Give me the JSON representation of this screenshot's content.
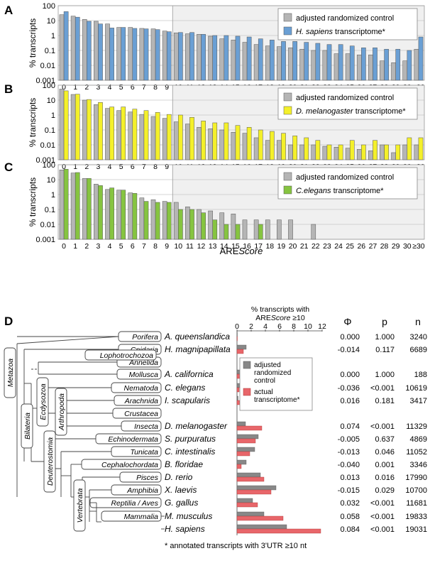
{
  "colors": {
    "control": "#b5b5b5",
    "human": "#6a9fd4",
    "fly": "#f4f02a",
    "worm": "#86c440",
    "actual": "#e8666a",
    "red_text": "#d0262d",
    "shade": "#f0f0f0"
  },
  "common": {
    "ylabel": "% transcripts",
    "xlabel_pre": "ARE",
    "xlabel_it": "Score",
    "ticks_y": [
      "100",
      "10",
      "1",
      "0.1",
      "0.01",
      "0.001"
    ],
    "ticks_x": [
      "0",
      "1",
      "2",
      "3",
      "4",
      "5",
      "6",
      "7",
      "8",
      "9",
      "10",
      "11",
      "12",
      "13",
      "14",
      "15",
      "16",
      "17",
      "18",
      "19",
      "20",
      "21",
      "22",
      "23",
      "24",
      "25",
      "26",
      "27",
      "28",
      "29",
      "30",
      "≥30"
    ],
    "legend_control": "adjusted randomized control"
  },
  "chart_data": [
    {
      "type": "bar",
      "panel": "A",
      "legend_species": "H. sapiens",
      "legend_suffix": " transcriptome*",
      "categories": [
        "0",
        "1",
        "2",
        "3",
        "4",
        "5",
        "6",
        "7",
        "8",
        "9",
        "10",
        "11",
        "12",
        "13",
        "14",
        "15",
        "16",
        "17",
        "18",
        "19",
        "20",
        "21",
        "22",
        "23",
        "24",
        "25",
        "26",
        "27",
        "28",
        "29",
        "30",
        "≥30"
      ],
      "series": [
        {
          "name": "adjusted randomized control",
          "values": [
            25,
            20,
            12,
            9,
            6,
            3.5,
            3.5,
            3,
            2.8,
            2,
            1.5,
            1.3,
            1.2,
            0.9,
            0.6,
            0.5,
            0.35,
            0.25,
            0.2,
            0.18,
            0.15,
            0.12,
            0.1,
            0.1,
            0.06,
            0.06,
            0.05,
            0.05,
            0.02,
            0.015,
            0.02,
            0.12
          ]
        },
        {
          "name": "H. sapiens transcriptome*",
          "values": [
            40,
            17,
            9,
            6,
            3.2,
            3.5,
            3,
            2.8,
            2.5,
            1.8,
            1.6,
            1.6,
            1.2,
            1,
            1,
            0.9,
            0.8,
            0.6,
            0.5,
            0.4,
            0.4,
            0.35,
            0.3,
            0.25,
            0.25,
            0.2,
            0.15,
            0.15,
            0.12,
            0.12,
            0.1,
            0.8
          ]
        }
      ],
      "ylim": [
        0.001,
        100
      ]
    },
    {
      "type": "bar",
      "panel": "B",
      "legend_species": "D. melanogaster",
      "legend_suffix": " transcriptome*",
      "categories": [
        "0",
        "1",
        "2",
        "3",
        "4",
        "5",
        "6",
        "7",
        "8",
        "9",
        "10",
        "11",
        "12",
        "13",
        "14",
        "15",
        "16",
        "17",
        "18",
        "19",
        "20",
        "21",
        "22",
        "23",
        "24",
        "25",
        "26",
        "27",
        "28",
        "29",
        "30",
        "≥30"
      ],
      "series": [
        {
          "name": "adjusted randomized control",
          "values": [
            55,
            24,
            10,
            5,
            2.8,
            2,
            1.6,
            1.1,
            0.8,
            0.6,
            0.35,
            0.25,
            0.15,
            0.12,
            0.1,
            0.07,
            0.06,
            0.03,
            0.02,
            0.02,
            0.01,
            0.01,
            0.01,
            0.008,
            0.007,
            0.006,
            0.005,
            0.004,
            0.01,
            0.003,
            0.01,
            0.01
          ]
        },
        {
          "name": "D. melanogaster transcriptome*",
          "values": [
            42,
            25,
            11,
            7,
            3.5,
            3.5,
            2.5,
            2,
            1.5,
            1.1,
            1,
            0.7,
            0.4,
            0.3,
            0.3,
            0.2,
            0.15,
            0.1,
            0.08,
            0.06,
            0.04,
            0.03,
            0.02,
            0.01,
            0.01,
            0.02,
            0.01,
            0.02,
            0.01,
            0.01,
            0.03,
            0.03
          ]
        }
      ],
      "ylim": [
        0.001,
        100
      ]
    },
    {
      "type": "bar",
      "panel": "C",
      "legend_species": "C.elegans",
      "legend_suffix": " transcriptome*",
      "categories": [
        "0",
        "1",
        "2",
        "3",
        "4",
        "5",
        "6",
        "7",
        "8",
        "9",
        "10",
        "11",
        "12",
        "13",
        "14",
        "15",
        "16",
        "17",
        "18",
        "19",
        "20",
        "21",
        "22",
        "23",
        "24",
        "25",
        "26",
        "27",
        "28",
        "29",
        "30",
        "≥30"
      ],
      "series": [
        {
          "name": "adjusted randomized control",
          "values": [
            45,
            28,
            12,
            5,
            2.2,
            2,
            1.3,
            0.6,
            0.45,
            0.35,
            0.3,
            0.15,
            0.1,
            0.08,
            0.06,
            0.05,
            0.02,
            0.02,
            0.02,
            0.02,
            0.02,
            0,
            0.01,
            0,
            0,
            0,
            0,
            0,
            0,
            0,
            0,
            0
          ]
        },
        {
          "name": "C.elegans transcriptome*",
          "values": [
            50,
            30,
            12,
            4,
            2.8,
            2,
            1.2,
            0.35,
            0.3,
            0.3,
            0.1,
            0.1,
            0.06,
            0.02,
            0.01,
            0.01,
            0,
            0.01,
            0,
            0,
            0,
            0,
            0,
            0,
            0,
            0,
            0,
            0,
            0,
            0,
            0,
            0
          ]
        }
      ],
      "ylim": [
        0.001,
        100
      ]
    },
    {
      "type": "bar",
      "panel": "D",
      "title_line1": "% transcripts with",
      "title_pre": "ARE",
      "title_it": "Score",
      "title_post": " ≥10",
      "ticks": [
        "0",
        "2",
        "4",
        "6",
        "8",
        "10",
        "12"
      ],
      "legend_control": [
        "adjusted",
        "randomized",
        "control"
      ],
      "legend_actual": [
        "actual",
        "transcriptome*"
      ],
      "footnote": "* annotated transcripts with 3'UTR ≥10 nt",
      "col_phi": "Φ",
      "col_p": "p",
      "col_n": "n",
      "rows": [
        {
          "species": "A. queenslandica",
          "red": false,
          "control": 0.05,
          "actual": 0.05,
          "phi": "0.000",
          "p": "1.000",
          "n": "3240"
        },
        {
          "species": "H. magnipapillata",
          "red": false,
          "control": 1.3,
          "actual": 0.9,
          "phi": "-0.014",
          "p": "0.117",
          "n": "6689"
        },
        {
          "species": "",
          "red": false,
          "control": 0,
          "actual": 0,
          "phi": "",
          "p": "",
          "n": ""
        },
        {
          "species": "A. californica",
          "red": false,
          "control": 1.5,
          "actual": 0.6,
          "phi": "0.000",
          "p": "1.000",
          "n": "188"
        },
        {
          "species": "C. elegans",
          "red": false,
          "control": 0.9,
          "actual": 0.3,
          "phi": "-0.036",
          "p": "<0.001",
          "n": "10619"
        },
        {
          "species": "I. scapularis",
          "red": false,
          "control": 0.15,
          "actual": 0.4,
          "phi": "0.016",
          "p": "0.181",
          "n": "3417"
        },
        {
          "species": "",
          "red": false,
          "control": 0,
          "actual": 0,
          "phi": "",
          "p": "",
          "n": ""
        },
        {
          "species": "D. melanogaster",
          "red": true,
          "control": 1.2,
          "actual": 3.5,
          "phi": "0.074",
          "p": "<0.001",
          "n": "11329"
        },
        {
          "species": "S. purpuratus",
          "red": false,
          "control": 3.0,
          "actual": 2.6,
          "phi": "-0.005",
          "p": "0.637",
          "n": "4869"
        },
        {
          "species": "C. intestinalis",
          "red": false,
          "control": 2.5,
          "actual": 1.8,
          "phi": "-0.013",
          "p": "0.046",
          "n": "11052"
        },
        {
          "species": "B. floridae",
          "red": false,
          "control": 1.3,
          "actual": 0.6,
          "phi": "-0.040",
          "p": "0.001",
          "n": "3346"
        },
        {
          "species": "D. rerio",
          "red": true,
          "control": 3.3,
          "actual": 3.8,
          "phi": "0.013",
          "p": "0.016",
          "n": "17990"
        },
        {
          "species": "X. laevis",
          "red": false,
          "control": 5.5,
          "actual": 4.8,
          "phi": "-0.015",
          "p": "0.029",
          "n": "10700"
        },
        {
          "species": "G. gallus",
          "red": true,
          "control": 2.2,
          "actual": 2.9,
          "phi": "0.032",
          "p": "<0.001",
          "n": "11681"
        },
        {
          "species": "M. musculus",
          "red": true,
          "control": 3.8,
          "actual": 6.5,
          "phi": "0.058",
          "p": "<0.001",
          "n": "19833"
        },
        {
          "species": "H. sapiens",
          "red": true,
          "control": 7.0,
          "actual": 11.8,
          "phi": "0.084",
          "p": "<0.001",
          "n": "19031"
        }
      ],
      "xlim": [
        0,
        12
      ]
    }
  ],
  "tree_labels": {
    "metazoa": "Metazoa",
    "bilateria": "Bilateria",
    "lophotrochozoa": "Lophotrochozoa",
    "ecdysozoa": "Ecdysozoa",
    "arthropoda": "Arthropoda",
    "deuterostomia": "Deuterostomia",
    "vertebrata": "Vertebrata",
    "porifera": "Porifera",
    "cnidaria": "Cnidaria",
    "annelida": "Annelida",
    "mollusca": "Mollusca",
    "nematoda": "Nematoda",
    "arachnida": "Arachnida",
    "crustacea": "Crustacea",
    "insecta": "Insecta",
    "echinodermata": "Echinodermata",
    "tunicata": "Tunicata",
    "cephalochordata": "Cephalochordata",
    "pisces": "Pisces",
    "amphibia": "Amphibia",
    "reptilia": "Reptilia / Aves",
    "mammalia": "Mammalia"
  }
}
